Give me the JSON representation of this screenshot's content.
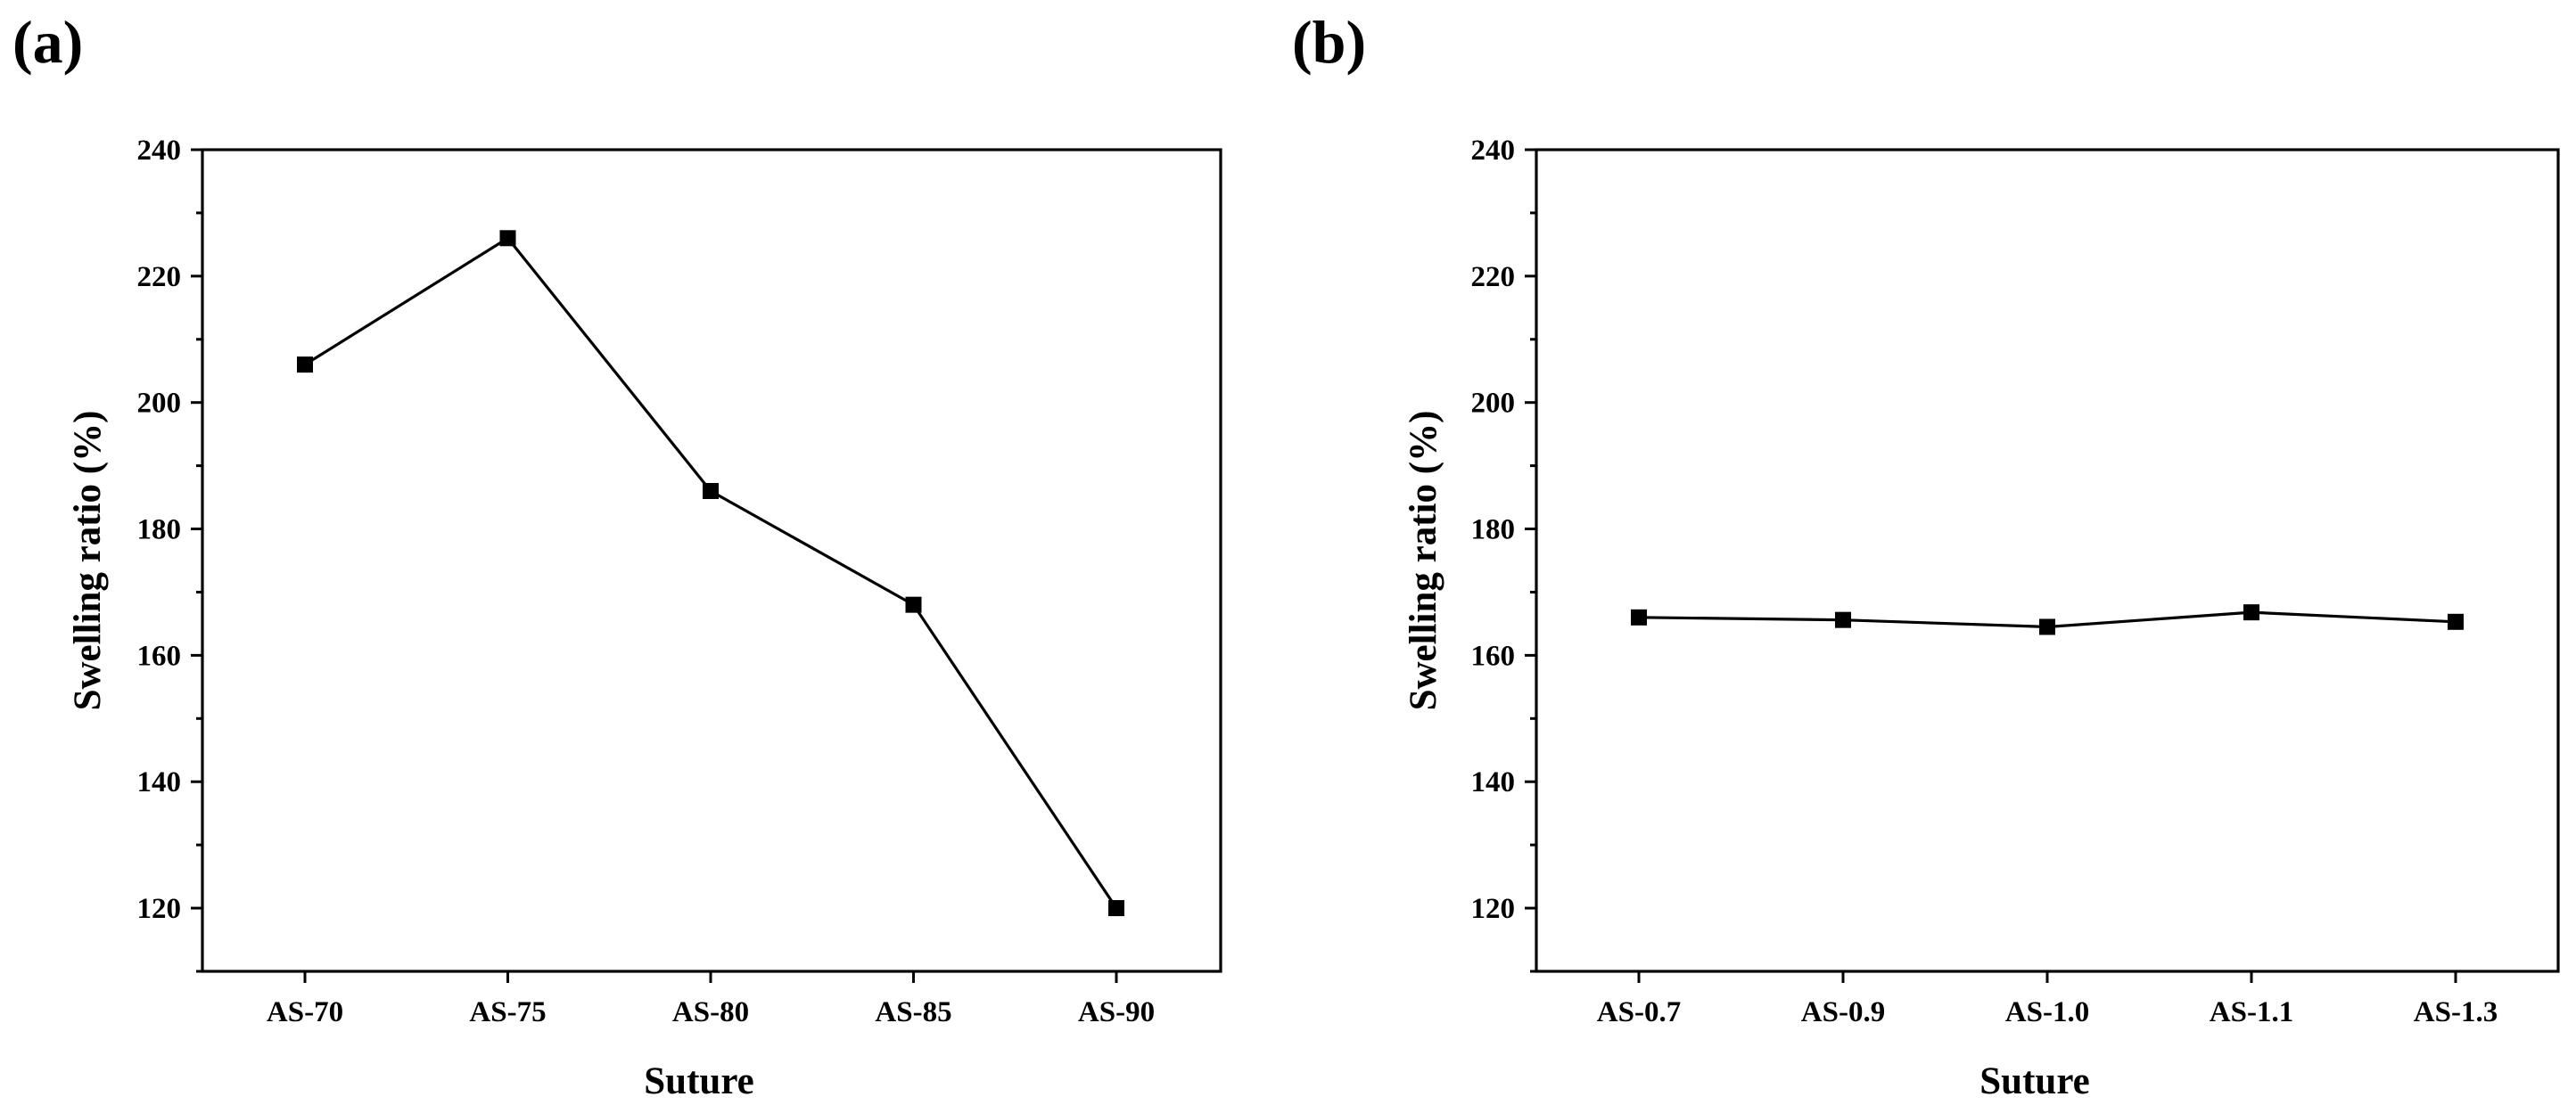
{
  "chart_data": [
    {
      "type": "line",
      "panel_label": "(a)",
      "categories": [
        "AS-70",
        "AS-75",
        "AS-80",
        "AS-85",
        "AS-90"
      ],
      "values": [
        206,
        226,
        186,
        168,
        120
      ],
      "title": "",
      "xlabel": "Suture",
      "ylabel": "Swelling ratio (%)",
      "ylim": [
        110,
        240
      ],
      "yticks": [
        120,
        140,
        160,
        180,
        200,
        220,
        240
      ],
      "ytick_labels": [
        "120",
        "140",
        "160",
        "180",
        "200",
        "220",
        "240"
      ],
      "grid": false,
      "marker": "square",
      "line_color": "#000000"
    },
    {
      "type": "line",
      "panel_label": "(b)",
      "categories": [
        "AS-0.7",
        "AS-0.9",
        "AS-1.0",
        "AS-1.1",
        "AS-1.3"
      ],
      "values": [
        166,
        165.6,
        164.5,
        166.8,
        165.3
      ],
      "title": "",
      "xlabel": "Suture",
      "ylabel": "Swelling ratio (%)",
      "ylim": [
        110,
        240
      ],
      "yticks": [
        120,
        140,
        160,
        180,
        200,
        220,
        240
      ],
      "ytick_labels": [
        "120",
        "140",
        "160",
        "180",
        "200",
        "220",
        "240"
      ],
      "grid": false,
      "marker": "square",
      "line_color": "#000000"
    }
  ]
}
